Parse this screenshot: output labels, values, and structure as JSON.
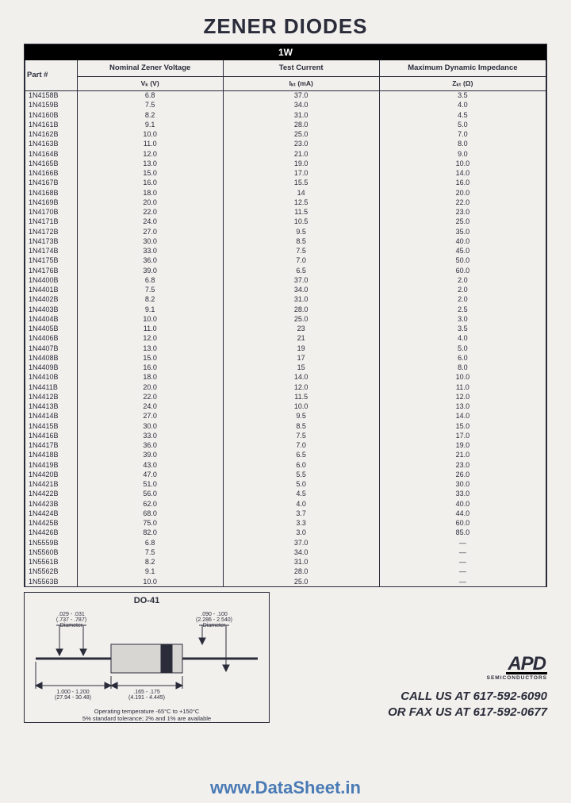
{
  "title": "ZENER DIODES",
  "table": {
    "band": "1W",
    "headers": {
      "part": "Part #",
      "vz": "Nominal Zener Voltage",
      "izt": "Test Current",
      "zzt": "Maximum Dynamic Impedance",
      "vz_sub": "Vₖ (V)",
      "izt_sub": "Iₖₜ (mA)",
      "zzt_sub": "Zₖₜ (Ω)"
    },
    "columns": [
      "part",
      "vz",
      "izt",
      "zzt"
    ],
    "col_widths": {
      "part": "10%",
      "vz": "28%",
      "izt": "30%",
      "zzt": "32%"
    },
    "rows": [
      [
        "1N4158B",
        "6.8",
        "37.0",
        "3.5"
      ],
      [
        "1N4159B",
        "7.5",
        "34.0",
        "4.0"
      ],
      [
        "1N4160B",
        "8.2",
        "31.0",
        "4.5"
      ],
      [
        "1N4161B",
        "9.1",
        "28.0",
        "5.0"
      ],
      [
        "1N4162B",
        "10.0",
        "25.0",
        "7.0"
      ],
      [
        "1N4163B",
        "11.0",
        "23.0",
        "8.0"
      ],
      [
        "1N4164B",
        "12.0",
        "21.0",
        "9.0"
      ],
      [
        "1N4165B",
        "13.0",
        "19.0",
        "10.0"
      ],
      [
        "1N4166B",
        "15.0",
        "17.0",
        "14.0"
      ],
      [
        "1N4167B",
        "16.0",
        "15.5",
        "16.0"
      ],
      [
        "1N4168B",
        "18.0",
        "14",
        "20.0"
      ],
      [
        "1N4169B",
        "20.0",
        "12.5",
        "22.0"
      ],
      [
        "1N4170B",
        "22.0",
        "11.5",
        "23.0"
      ],
      [
        "1N4171B",
        "24.0",
        "10.5",
        "25.0"
      ],
      [
        "1N4172B",
        "27.0",
        "9.5",
        "35.0"
      ],
      [
        "1N4173B",
        "30.0",
        "8.5",
        "40.0"
      ],
      [
        "1N4174B",
        "33.0",
        "7.5",
        "45.0"
      ],
      [
        "1N4175B",
        "36.0",
        "7.0",
        "50.0"
      ],
      [
        "1N4176B",
        "39.0",
        "6.5",
        "60.0"
      ],
      [
        "1N4400B",
        "6.8",
        "37.0",
        "2.0"
      ],
      [
        "1N4401B",
        "7.5",
        "34.0",
        "2.0"
      ],
      [
        "1N4402B",
        "8.2",
        "31.0",
        "2.0"
      ],
      [
        "1N4403B",
        "9.1",
        "28.0",
        "2.5"
      ],
      [
        "1N4404B",
        "10.0",
        "25.0",
        "3.0"
      ],
      [
        "1N4405B",
        "11.0",
        "23",
        "3.5"
      ],
      [
        "1N4406B",
        "12.0",
        "21",
        "4.0"
      ],
      [
        "1N4407B",
        "13.0",
        "19",
        "5.0"
      ],
      [
        "1N4408B",
        "15.0",
        "17",
        "6.0"
      ],
      [
        "1N4409B",
        "16.0",
        "15",
        "8.0"
      ],
      [
        "1N4410B",
        "18.0",
        "14.0",
        "10.0"
      ],
      [
        "1N4411B",
        "20.0",
        "12.0",
        "11.0"
      ],
      [
        "1N4412B",
        "22.0",
        "11.5",
        "12.0"
      ],
      [
        "1N4413B",
        "24.0",
        "10.0",
        "13.0"
      ],
      [
        "1N4414B",
        "27.0",
        "9.5",
        "14.0"
      ],
      [
        "1N4415B",
        "30.0",
        "8.5",
        "15.0"
      ],
      [
        "1N4416B",
        "33.0",
        "7.5",
        "17.0"
      ],
      [
        "1N4417B",
        "36.0",
        "7.0",
        "19.0"
      ],
      [
        "1N4418B",
        "39.0",
        "6.5",
        "21.0"
      ],
      [
        "1N4419B",
        "43.0",
        "6.0",
        "23.0"
      ],
      [
        "1N4420B",
        "47.0",
        "5.5",
        "26.0"
      ],
      [
        "1N4421B",
        "51.0",
        "5.0",
        "30.0"
      ],
      [
        "1N4422B",
        "56.0",
        "4.5",
        "33.0"
      ],
      [
        "1N4423B",
        "62.0",
        "4.0",
        "40.0"
      ],
      [
        "1N4424B",
        "68.0",
        "3.7",
        "44.0"
      ],
      [
        "1N4425B",
        "75.0",
        "3.3",
        "60.0"
      ],
      [
        "1N4426B",
        "82.0",
        "3.0",
        "85.0"
      ],
      [
        "1N5559B",
        "6.8",
        "37.0",
        "—"
      ],
      [
        "1N5560B",
        "7.5",
        "34.0",
        "—"
      ],
      [
        "1N5561B",
        "8.2",
        "31.0",
        "—"
      ],
      [
        "1N5562B",
        "9.1",
        "28.0",
        "—"
      ],
      [
        "1N5563B",
        "10.0",
        "25.0",
        "—"
      ]
    ]
  },
  "do41": {
    "title": "DO-41",
    "lead_dia": ".029 - .031\n(.737 - .787)\nDiameter",
    "body_dia": ".090 - .100\n(2.286 - 2.540)\nDiameter",
    "lead_len": "1.000 - 1.200\n(27.94 - 30.48)",
    "body_len": ".165 - .175\n(4.191 - 4.445)",
    "note1": "Operating temperature -65°C to +150°C",
    "note2": "5% standard tolerance; 2% and 1% are available",
    "colors": {
      "line": "#2a2c3a",
      "fill": "#2a2c3a"
    }
  },
  "contact": {
    "logo": "APD",
    "logo_sub": "SEMICONDUCTORS",
    "line1": "CALL US AT 617-592-6090",
    "line2": "OR FAX US AT 617-592-0677"
  },
  "watermark": "www.DataSheet.in",
  "colors": {
    "page_bg": "#f2f0ed",
    "text": "#2a2c3a",
    "band_bg": "#000000",
    "band_fg": "#ffffff",
    "watermark": "#4a7bb5"
  }
}
